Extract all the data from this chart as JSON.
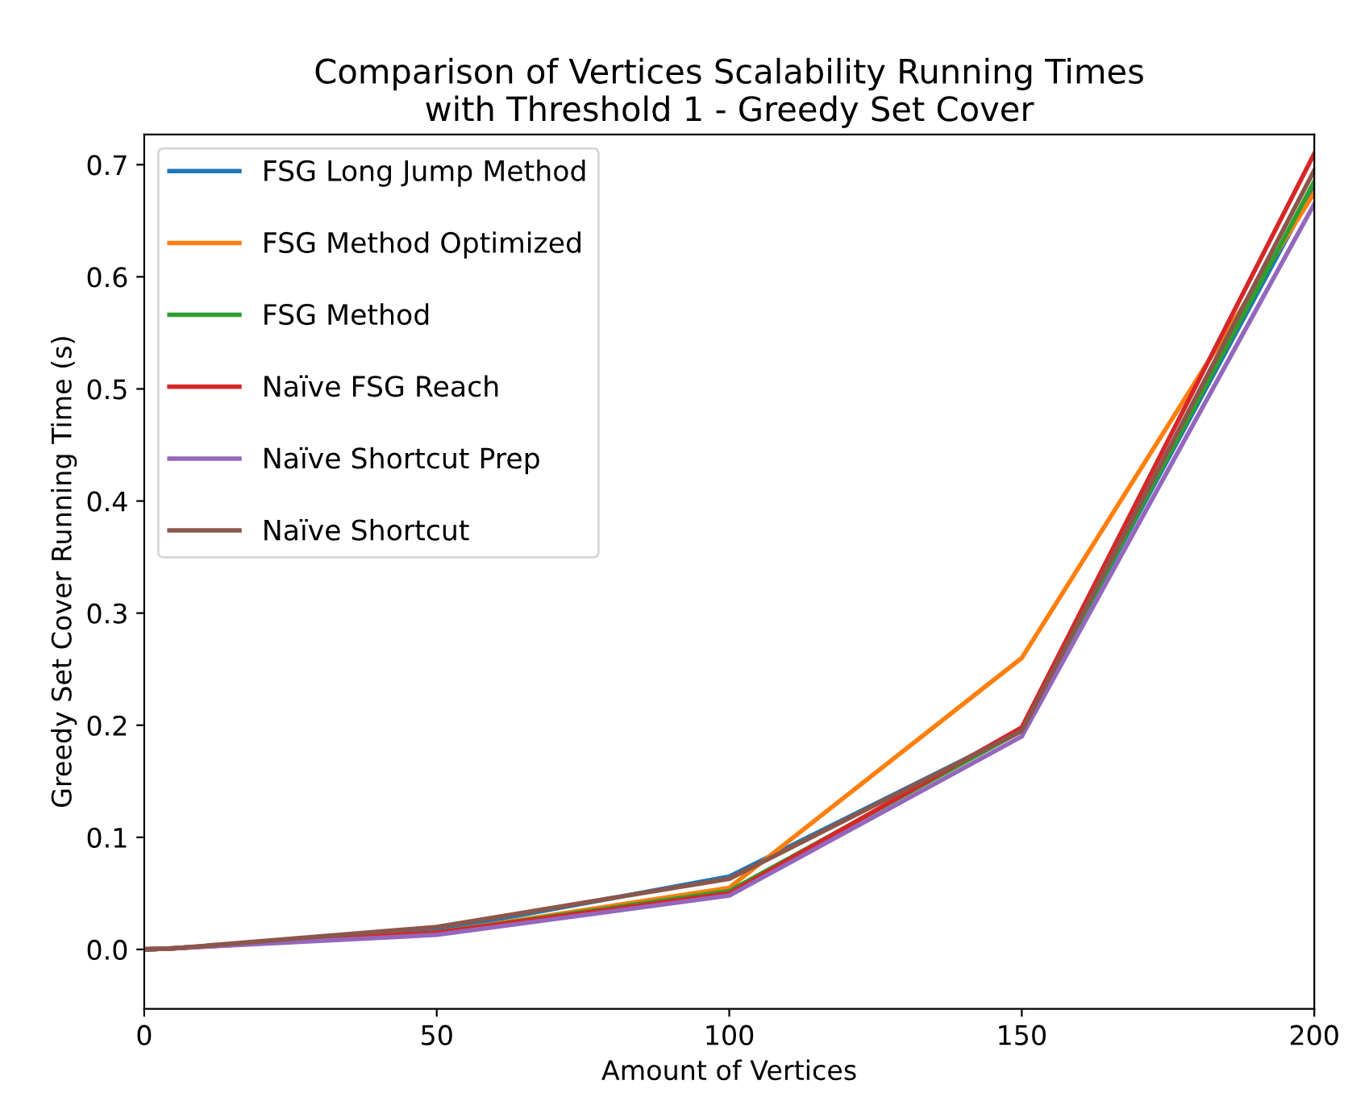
{
  "chart_data": {
    "type": "line",
    "title": "Comparison of Vertices Scalability Running Times\nwith Threshold 1 - Greedy Set Cover",
    "xlabel": "Amount of Vertices",
    "ylabel": "Greedy Set Cover Running Time (s)",
    "x": [
      0,
      5,
      50,
      100,
      150,
      200
    ],
    "series": [
      {
        "name": "FSG Long Jump Method",
        "color": "#1f77b4",
        "values": [
          0.0,
          0.001,
          0.017,
          0.065,
          0.195,
          0.68
        ]
      },
      {
        "name": "FSG Method Optimized",
        "color": "#ff7f0e",
        "values": [
          0.0,
          0.001,
          0.015,
          0.055,
          0.26,
          0.675
        ]
      },
      {
        "name": "FSG Method",
        "color": "#2ca02c",
        "values": [
          0.0,
          0.001,
          0.015,
          0.052,
          0.195,
          0.685
        ]
      },
      {
        "name": "Naïve FSG Reach",
        "color": "#d62728",
        "values": [
          0.0,
          0.001,
          0.015,
          0.05,
          0.198,
          0.71
        ]
      },
      {
        "name": "Naïve Shortcut Prep",
        "color": "#9467bd",
        "values": [
          0.0,
          0.001,
          0.013,
          0.048,
          0.19,
          0.665
        ]
      },
      {
        "name": "Naïve Shortcut",
        "color": "#8c564b",
        "values": [
          0.0,
          0.001,
          0.02,
          0.063,
          0.195,
          0.695
        ]
      }
    ],
    "xlim": [
      0,
      200
    ],
    "xticks": [
      0,
      50,
      100,
      150,
      200
    ],
    "ylim": [
      -0.053,
      0.727
    ],
    "yticks": [
      {
        "value": 0,
        "label": "0.0"
      },
      0.1,
      0.2,
      0.3,
      0.4,
      0.5,
      0.6,
      0.7
    ],
    "grid": false,
    "legend": "top left"
  }
}
